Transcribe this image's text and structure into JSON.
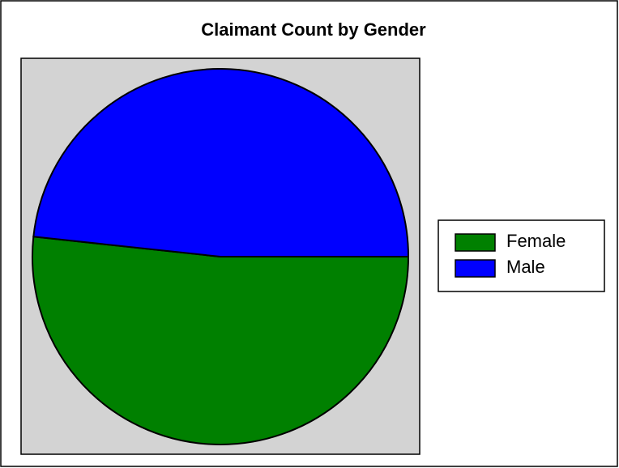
{
  "chart_data": {
    "type": "pie",
    "title": "Claimant Count by Gender",
    "categories": [
      "Female",
      "Male"
    ],
    "values": [
      51.7,
      48.3
    ],
    "colors": [
      "#008000",
      "#0000ff"
    ],
    "legend": "right"
  }
}
